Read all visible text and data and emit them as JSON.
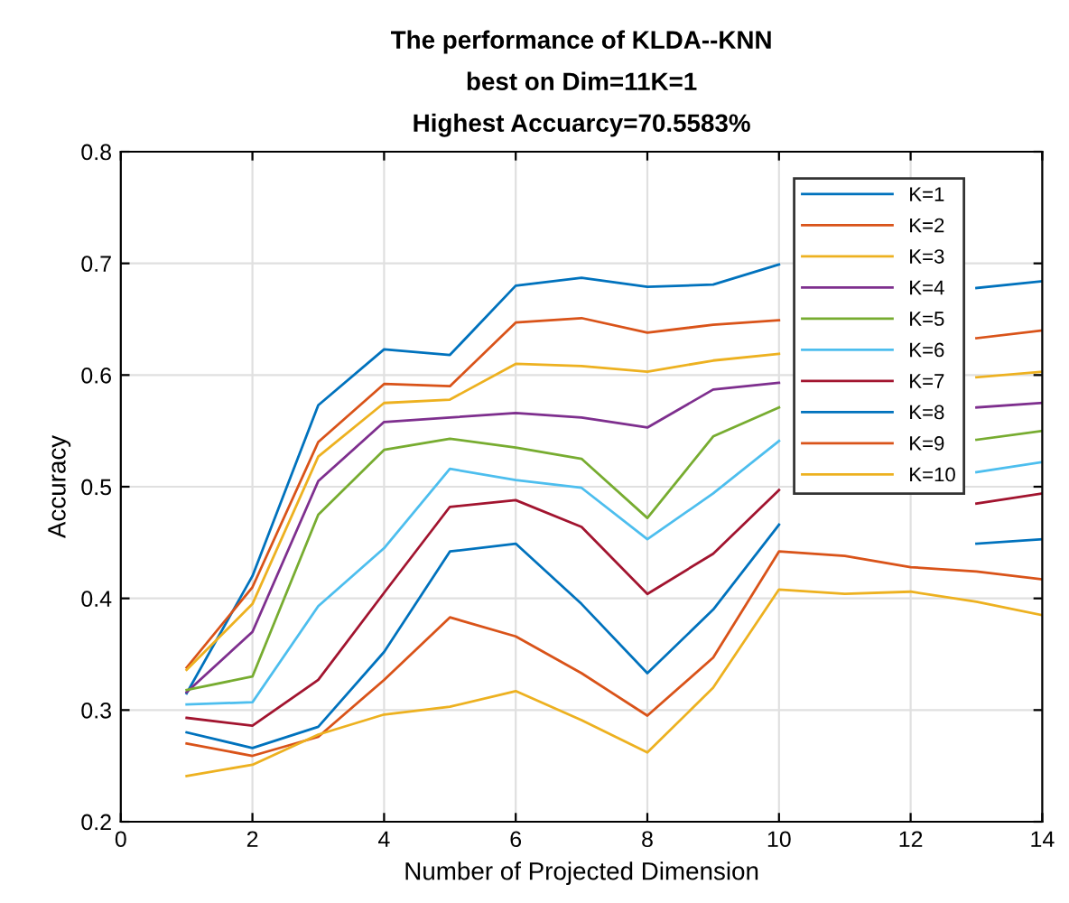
{
  "chart_data": {
    "type": "line",
    "title": "The performance of KLDA--KNN\nbest on Dim=11K=1\nHighest Accuarcy=70.5583%",
    "xlabel": "Number of Projected Dimension",
    "ylabel": "Accuracy",
    "x": [
      1,
      2,
      3,
      4,
      5,
      6,
      7,
      8,
      9,
      10,
      11,
      12,
      13,
      14
    ],
    "series": [
      {
        "name": "K=1",
        "color": "#0072bd",
        "values": [
          0.315,
          0.42,
          0.573,
          0.623,
          0.618,
          0.68,
          0.687,
          0.679,
          0.681,
          0.699,
          null,
          null,
          0.678,
          0.684
        ]
      },
      {
        "name": "K=2",
        "color": "#d95319",
        "values": [
          0.338,
          0.41,
          0.54,
          0.592,
          0.59,
          0.647,
          0.651,
          0.638,
          0.645,
          0.649,
          null,
          null,
          0.633,
          0.64
        ]
      },
      {
        "name": "K=3",
        "color": "#edb120",
        "values": [
          0.336,
          0.395,
          0.527,
          0.575,
          0.578,
          0.61,
          0.608,
          0.603,
          0.613,
          0.619,
          null,
          null,
          0.598,
          0.603
        ]
      },
      {
        "name": "K=4",
        "color": "#7e2f8e",
        "values": [
          0.316,
          0.37,
          0.505,
          0.558,
          0.562,
          0.566,
          0.562,
          0.553,
          0.587,
          0.593,
          null,
          null,
          0.571,
          0.575
        ]
      },
      {
        "name": "K=5",
        "color": "#77ac30",
        "values": [
          0.318,
          0.33,
          0.475,
          0.533,
          0.543,
          0.535,
          0.525,
          0.472,
          0.545,
          0.571,
          null,
          null,
          0.542,
          0.55
        ]
      },
      {
        "name": "K=6",
        "color": "#4dbeee",
        "values": [
          0.305,
          0.307,
          0.393,
          0.445,
          0.516,
          0.506,
          0.499,
          0.453,
          0.494,
          0.541,
          null,
          null,
          0.513,
          0.522
        ]
      },
      {
        "name": "K=7",
        "color": "#a2142f",
        "values": [
          0.293,
          0.286,
          0.327,
          0.405,
          0.482,
          0.488,
          0.464,
          0.404,
          0.44,
          0.497,
          null,
          null,
          0.485,
          0.494
        ]
      },
      {
        "name": "K=8",
        "color": "#0072bd",
        "values": [
          0.28,
          0.266,
          0.285,
          0.352,
          0.442,
          0.449,
          0.395,
          0.333,
          0.39,
          0.466,
          null,
          null,
          0.449,
          0.453
        ]
      },
      {
        "name": "K=9",
        "color": "#d95319",
        "values": [
          0.27,
          0.259,
          0.276,
          0.327,
          0.383,
          0.366,
          0.333,
          0.295,
          0.347,
          0.442,
          0.438,
          0.428,
          0.424,
          0.417
        ]
      },
      {
        "name": "K=10",
        "color": "#edb120",
        "values": [
          0.241,
          0.251,
          0.278,
          0.296,
          0.303,
          0.317,
          0.291,
          0.262,
          0.32,
          0.408,
          0.404,
          0.406,
          0.397,
          0.385
        ]
      }
    ],
    "xlim": [
      0,
      14
    ],
    "xticks": [
      0,
      2,
      4,
      6,
      8,
      10,
      12,
      14
    ],
    "ylim": [
      0.2,
      0.8
    ],
    "yticks": [
      0.2,
      0.3,
      0.4,
      0.5,
      0.6,
      0.7,
      0.8
    ],
    "grid": true,
    "legend": "top right",
    "marker": "none",
    "line_style": "solid"
  }
}
